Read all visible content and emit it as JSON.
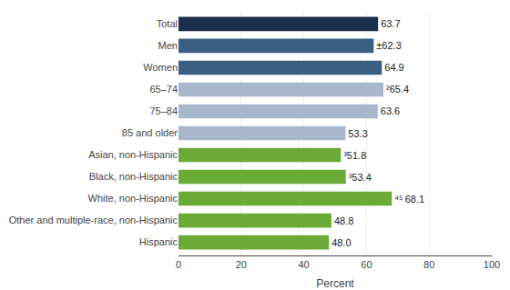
{
  "chart_data": {
    "type": "bar",
    "orientation": "horizontal",
    "categories": [
      "Hispanic",
      "Other and multiple-race, non-Hispanic",
      "White, non-Hispanic",
      "Black, non-Hispanic",
      "Asian, non-Hispanic",
      "85 and older",
      "75–84",
      "65–74",
      "Women",
      "Men",
      "Total"
    ],
    "values": [
      48.0,
      48.8,
      68.1,
      53.4,
      51.8,
      53.3,
      63.6,
      65.4,
      64.9,
      62.3,
      63.7
    ],
    "value_labels": [
      "48.0",
      "48.8",
      "⁴⁵ 68.1",
      "³53.4",
      "³51.8",
      "53.3",
      "63.6",
      "²65.4",
      "64.9",
      "±62.3",
      "63.7"
    ],
    "colors": [
      "#6aaa36",
      "#6aaa36",
      "#6aaa36",
      "#6aaa36",
      "#6aaa36",
      "#a8b8cc",
      "#a8b8cc",
      "#a8b8cc",
      "#3a5f82",
      "#3a5f82",
      "#1a2f4a"
    ],
    "xlabel": "Percent",
    "xlim": [
      0,
      100
    ],
    "xticks": [
      0,
      20,
      40,
      60,
      80,
      100
    ],
    "grid": true,
    "data_labels": true
  }
}
